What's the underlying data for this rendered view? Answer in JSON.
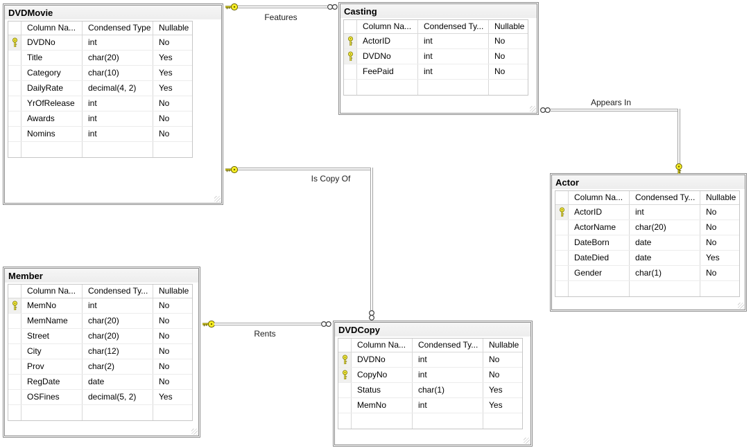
{
  "tables": [
    {
      "name": "DVDMovie",
      "headers": {
        "name": "Column Na...",
        "type": "Condensed Type",
        "nullable": "Nullable"
      },
      "rows": [
        {
          "pk": true,
          "name": "DVDNo",
          "type": "int",
          "nullable": "No"
        },
        {
          "pk": false,
          "name": "Title",
          "type": "char(20)",
          "nullable": "Yes"
        },
        {
          "pk": false,
          "name": "Category",
          "type": "char(10)",
          "nullable": "Yes"
        },
        {
          "pk": false,
          "name": "DailyRate",
          "type": "decimal(4, 2)",
          "nullable": "Yes"
        },
        {
          "pk": false,
          "name": "YrOfRelease",
          "type": "int",
          "nullable": "No"
        },
        {
          "pk": false,
          "name": "Awards",
          "type": "int",
          "nullable": "No"
        },
        {
          "pk": false,
          "name": "Nomins",
          "type": "int",
          "nullable": "No"
        },
        {
          "pk": false,
          "name": "",
          "type": "",
          "nullable": ""
        }
      ]
    },
    {
      "name": "Casting",
      "headers": {
        "name": "Column Na...",
        "type": "Condensed Ty...",
        "nullable": "Nullable"
      },
      "rows": [
        {
          "pk": true,
          "name": "ActorID",
          "type": "int",
          "nullable": "No"
        },
        {
          "pk": true,
          "name": "DVDNo",
          "type": "int",
          "nullable": "No"
        },
        {
          "pk": false,
          "name": "FeePaid",
          "type": "int",
          "nullable": "No"
        },
        {
          "pk": false,
          "name": "",
          "type": "",
          "nullable": ""
        }
      ]
    },
    {
      "name": "Actor",
      "headers": {
        "name": "Column Na...",
        "type": "Condensed Ty...",
        "nullable": "Nullable"
      },
      "rows": [
        {
          "pk": true,
          "name": "ActorID",
          "type": "int",
          "nullable": "No"
        },
        {
          "pk": false,
          "name": "ActorName",
          "type": "char(20)",
          "nullable": "No"
        },
        {
          "pk": false,
          "name": "DateBorn",
          "type": "date",
          "nullable": "No"
        },
        {
          "pk": false,
          "name": "DateDied",
          "type": "date",
          "nullable": "Yes"
        },
        {
          "pk": false,
          "name": "Gender",
          "type": "char(1)",
          "nullable": "No"
        },
        {
          "pk": false,
          "name": "",
          "type": "",
          "nullable": ""
        }
      ]
    },
    {
      "name": "Member",
      "headers": {
        "name": "Column Na...",
        "type": "Condensed Ty...",
        "nullable": "Nullable"
      },
      "rows": [
        {
          "pk": true,
          "name": "MemNo",
          "type": "int",
          "nullable": "No"
        },
        {
          "pk": false,
          "name": "MemName",
          "type": "char(20)",
          "nullable": "No"
        },
        {
          "pk": false,
          "name": "Street",
          "type": "char(20)",
          "nullable": "No"
        },
        {
          "pk": false,
          "name": "City",
          "type": "char(12)",
          "nullable": "No"
        },
        {
          "pk": false,
          "name": "Prov",
          "type": "char(2)",
          "nullable": "No"
        },
        {
          "pk": false,
          "name": "RegDate",
          "type": "date",
          "nullable": "No"
        },
        {
          "pk": false,
          "name": "OSFines",
          "type": "decimal(5, 2)",
          "nullable": "Yes"
        },
        {
          "pk": false,
          "name": "",
          "type": "",
          "nullable": ""
        }
      ]
    },
    {
      "name": "DVDCopy",
      "headers": {
        "name": "Column Na...",
        "type": "Condensed Ty...",
        "nullable": "Nullable"
      },
      "rows": [
        {
          "pk": true,
          "name": "DVDNo",
          "type": "int",
          "nullable": "No"
        },
        {
          "pk": true,
          "name": "CopyNo",
          "type": "int",
          "nullable": "No"
        },
        {
          "pk": false,
          "name": "Status",
          "type": "char(1)",
          "nullable": "Yes"
        },
        {
          "pk": false,
          "name": "MemNo",
          "type": "int",
          "nullable": "Yes"
        },
        {
          "pk": false,
          "name": "",
          "type": "",
          "nullable": ""
        }
      ]
    }
  ],
  "relationships": [
    {
      "label": "Features",
      "one_side": "DVDMovie",
      "many_side": "Casting"
    },
    {
      "label": "Appears In",
      "one_side": "Actor",
      "many_side": "Casting"
    },
    {
      "label": "Is Copy Of",
      "one_side": "DVDMovie",
      "many_side": "DVDCopy"
    },
    {
      "label": "Rents",
      "one_side": "Member",
      "many_side": "DVDCopy"
    }
  ],
  "colors": {
    "key_fill": "#f7ee26",
    "key_outline": "#6b6400",
    "relationship_line": "#a1a1a1",
    "titlebar_bg": "#f0f0f0",
    "window_border": "#8a8a8a",
    "grid_line": "#d8d8d8"
  }
}
